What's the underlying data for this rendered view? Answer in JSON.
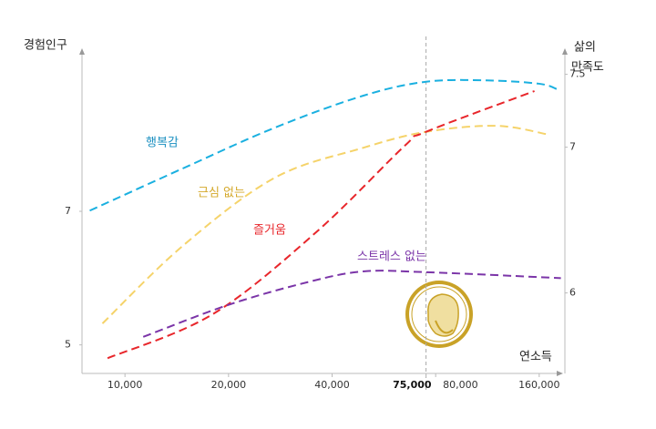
{
  "chart_data": {
    "type": "line",
    "y_label": "경험인구",
    "y2_label": [
      "삶의",
      "만족도"
    ],
    "x_label": "연소득",
    "log_x": true,
    "xlim": [
      7500,
      190000
    ],
    "xticks": [
      {
        "value": 10000,
        "label": "10,000"
      },
      {
        "value": 20000,
        "label": "20,000"
      },
      {
        "value": 40000,
        "label": "40,000"
      },
      {
        "value": 75000,
        "label": "75,000"
      },
      {
        "value": 80000,
        "label": "80,000"
      },
      {
        "value": 160000,
        "label": "160,000"
      }
    ],
    "vline": 75000,
    "ylim": [
      4.6,
      9.4
    ],
    "yticks": [
      5,
      7
    ],
    "y2lim": [
      5.46,
      7.66
    ],
    "y2ticks": [
      6,
      7,
      7.5
    ],
    "series": [
      {
        "name": "행복감",
        "color": "#1ab0e0",
        "label_color": "#1a8fc0",
        "x": [
          7900,
          14700,
          27200,
          49200,
          75000,
          112600,
          160000,
          180000
        ],
        "values": [
          7.01,
          7.64,
          8.25,
          8.73,
          8.94,
          8.96,
          8.91,
          8.83
        ]
      },
      {
        "name": "근심 없는",
        "color": "#f5d36a",
        "label_color": "#d4a82a",
        "x": [
          8600,
          14700,
          27200,
          49200,
          75000,
          120000,
          170000
        ],
        "values": [
          5.32,
          6.48,
          7.5,
          7.95,
          8.19,
          8.28,
          8.15
        ]
      },
      {
        "name": "즐거움",
        "color": "#e8262b",
        "label_color": "#e8262b",
        "x": [
          8900,
          18000,
          36000,
          65000,
          75000,
          155000
        ],
        "values": [
          4.8,
          5.46,
          6.69,
          7.98,
          8.19,
          8.8
        ]
      },
      {
        "name": "스트레스 없는",
        "color": "#7b35a8",
        "label_color": "#7b35a8",
        "x": [
          11300,
          20000,
          34000,
          49200,
          74000,
          185000
        ],
        "values": [
          5.12,
          5.6,
          5.94,
          6.1,
          6.09,
          6.0
        ]
      }
    ]
  }
}
